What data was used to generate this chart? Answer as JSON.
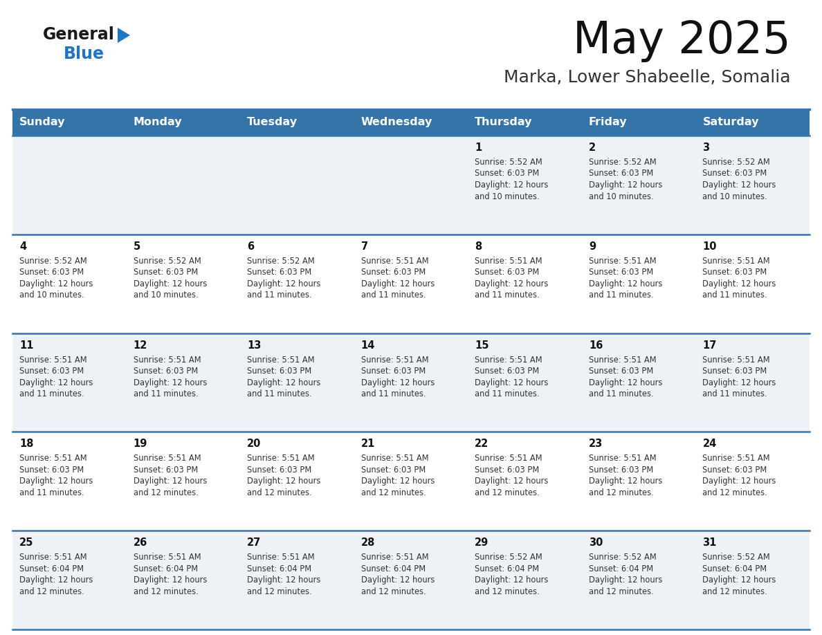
{
  "title": "May 2025",
  "subtitle": "Marka, Lower Shabeelle, Somalia",
  "days_of_week": [
    "Sunday",
    "Monday",
    "Tuesday",
    "Wednesday",
    "Thursday",
    "Friday",
    "Saturday"
  ],
  "header_bg_color": "#3574a8",
  "header_text_color": "#ffffff",
  "row_bg_even": "#eef2f7",
  "row_bg_odd": "#ffffff",
  "cell_border_color": "#3574a8",
  "day_number_color": "#111111",
  "cell_text_color": "#333333",
  "title_color": "#111111",
  "subtitle_color": "#333333",
  "logo_general_color": "#1a1a1a",
  "logo_blue_color": "#2176c2",
  "logo_triangle_color": "#2176c2",
  "weeks": [
    [
      {
        "num": "",
        "sunrise": "",
        "sunset": "",
        "daylight": ""
      },
      {
        "num": "",
        "sunrise": "",
        "sunset": "",
        "daylight": ""
      },
      {
        "num": "",
        "sunrise": "",
        "sunset": "",
        "daylight": ""
      },
      {
        "num": "",
        "sunrise": "",
        "sunset": "",
        "daylight": ""
      },
      {
        "num": "1",
        "sunrise": "5:52 AM",
        "sunset": "6:03 PM",
        "daylight": "12 hours\nand 10 minutes."
      },
      {
        "num": "2",
        "sunrise": "5:52 AM",
        "sunset": "6:03 PM",
        "daylight": "12 hours\nand 10 minutes."
      },
      {
        "num": "3",
        "sunrise": "5:52 AM",
        "sunset": "6:03 PM",
        "daylight": "12 hours\nand 10 minutes."
      }
    ],
    [
      {
        "num": "4",
        "sunrise": "5:52 AM",
        "sunset": "6:03 PM",
        "daylight": "12 hours\nand 10 minutes."
      },
      {
        "num": "5",
        "sunrise": "5:52 AM",
        "sunset": "6:03 PM",
        "daylight": "12 hours\nand 10 minutes."
      },
      {
        "num": "6",
        "sunrise": "5:52 AM",
        "sunset": "6:03 PM",
        "daylight": "12 hours\nand 11 minutes."
      },
      {
        "num": "7",
        "sunrise": "5:51 AM",
        "sunset": "6:03 PM",
        "daylight": "12 hours\nand 11 minutes."
      },
      {
        "num": "8",
        "sunrise": "5:51 AM",
        "sunset": "6:03 PM",
        "daylight": "12 hours\nand 11 minutes."
      },
      {
        "num": "9",
        "sunrise": "5:51 AM",
        "sunset": "6:03 PM",
        "daylight": "12 hours\nand 11 minutes."
      },
      {
        "num": "10",
        "sunrise": "5:51 AM",
        "sunset": "6:03 PM",
        "daylight": "12 hours\nand 11 minutes."
      }
    ],
    [
      {
        "num": "11",
        "sunrise": "5:51 AM",
        "sunset": "6:03 PM",
        "daylight": "12 hours\nand 11 minutes."
      },
      {
        "num": "12",
        "sunrise": "5:51 AM",
        "sunset": "6:03 PM",
        "daylight": "12 hours\nand 11 minutes."
      },
      {
        "num": "13",
        "sunrise": "5:51 AM",
        "sunset": "6:03 PM",
        "daylight": "12 hours\nand 11 minutes."
      },
      {
        "num": "14",
        "sunrise": "5:51 AM",
        "sunset": "6:03 PM",
        "daylight": "12 hours\nand 11 minutes."
      },
      {
        "num": "15",
        "sunrise": "5:51 AM",
        "sunset": "6:03 PM",
        "daylight": "12 hours\nand 11 minutes."
      },
      {
        "num": "16",
        "sunrise": "5:51 AM",
        "sunset": "6:03 PM",
        "daylight": "12 hours\nand 11 minutes."
      },
      {
        "num": "17",
        "sunrise": "5:51 AM",
        "sunset": "6:03 PM",
        "daylight": "12 hours\nand 11 minutes."
      }
    ],
    [
      {
        "num": "18",
        "sunrise": "5:51 AM",
        "sunset": "6:03 PM",
        "daylight": "12 hours\nand 11 minutes."
      },
      {
        "num": "19",
        "sunrise": "5:51 AM",
        "sunset": "6:03 PM",
        "daylight": "12 hours\nand 12 minutes."
      },
      {
        "num": "20",
        "sunrise": "5:51 AM",
        "sunset": "6:03 PM",
        "daylight": "12 hours\nand 12 minutes."
      },
      {
        "num": "21",
        "sunrise": "5:51 AM",
        "sunset": "6:03 PM",
        "daylight": "12 hours\nand 12 minutes."
      },
      {
        "num": "22",
        "sunrise": "5:51 AM",
        "sunset": "6:03 PM",
        "daylight": "12 hours\nand 12 minutes."
      },
      {
        "num": "23",
        "sunrise": "5:51 AM",
        "sunset": "6:03 PM",
        "daylight": "12 hours\nand 12 minutes."
      },
      {
        "num": "24",
        "sunrise": "5:51 AM",
        "sunset": "6:03 PM",
        "daylight": "12 hours\nand 12 minutes."
      }
    ],
    [
      {
        "num": "25",
        "sunrise": "5:51 AM",
        "sunset": "6:04 PM",
        "daylight": "12 hours\nand 12 minutes."
      },
      {
        "num": "26",
        "sunrise": "5:51 AM",
        "sunset": "6:04 PM",
        "daylight": "12 hours\nand 12 minutes."
      },
      {
        "num": "27",
        "sunrise": "5:51 AM",
        "sunset": "6:04 PM",
        "daylight": "12 hours\nand 12 minutes."
      },
      {
        "num": "28",
        "sunrise": "5:51 AM",
        "sunset": "6:04 PM",
        "daylight": "12 hours\nand 12 minutes."
      },
      {
        "num": "29",
        "sunrise": "5:52 AM",
        "sunset": "6:04 PM",
        "daylight": "12 hours\nand 12 minutes."
      },
      {
        "num": "30",
        "sunrise": "5:52 AM",
        "sunset": "6:04 PM",
        "daylight": "12 hours\nand 12 minutes."
      },
      {
        "num": "31",
        "sunrise": "5:52 AM",
        "sunset": "6:04 PM",
        "daylight": "12 hours\nand 12 minutes."
      }
    ]
  ]
}
